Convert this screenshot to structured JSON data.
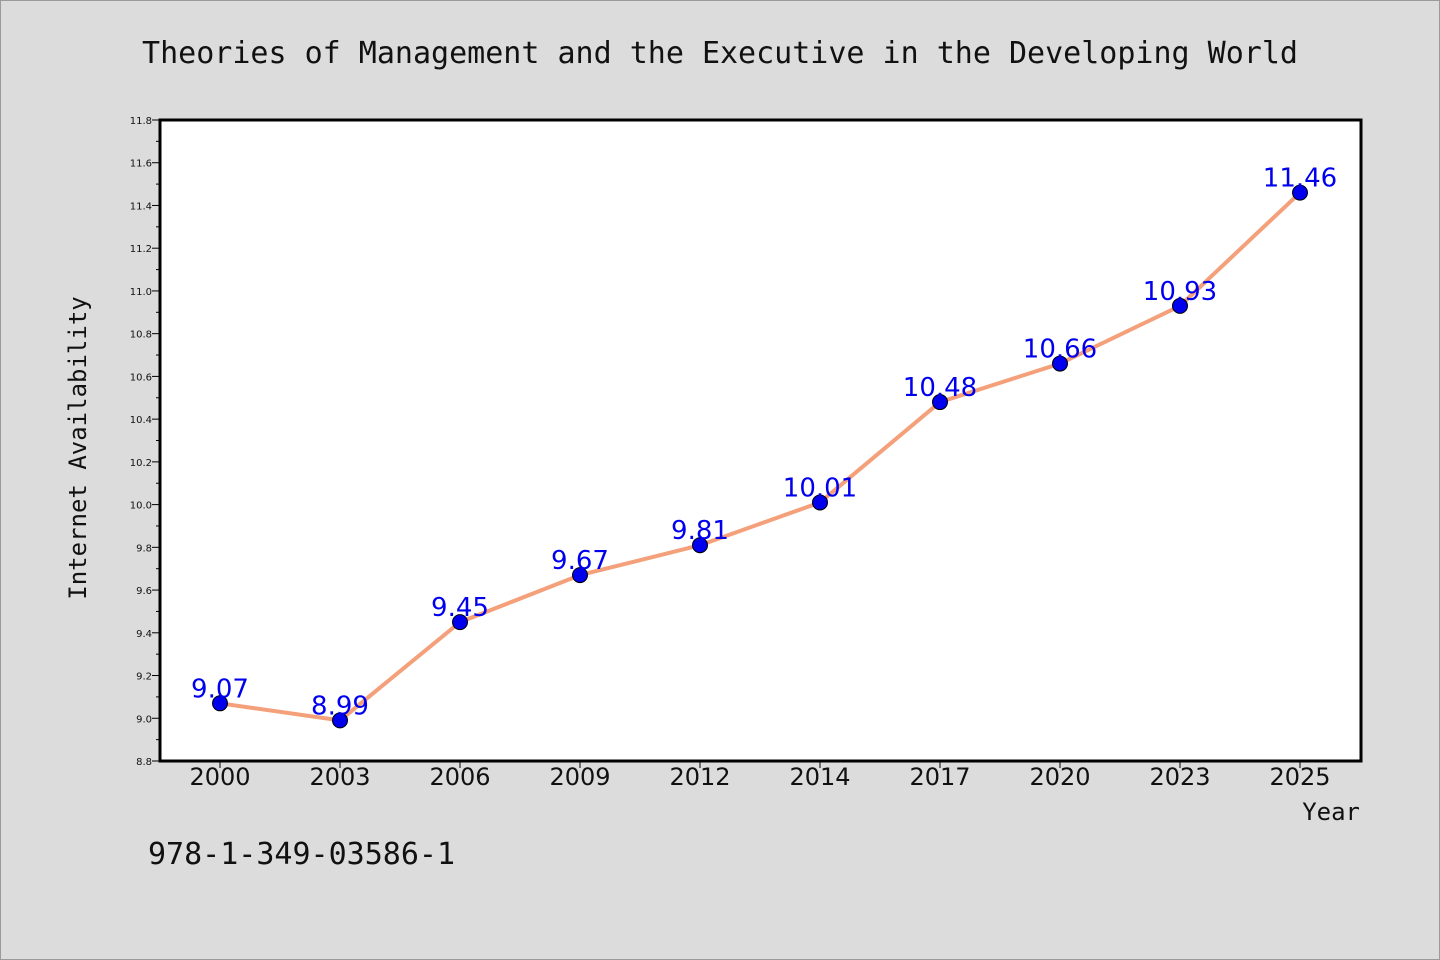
{
  "page": {
    "isbn": "978-1-349-03586-1"
  },
  "chart_data": {
    "type": "line",
    "title": "Theories of Management and the Executive in the Developing World",
    "xlabel": "Year",
    "ylabel": "Internet Availability",
    "categories": [
      "2000",
      "2003",
      "2006",
      "2009",
      "2012",
      "2014",
      "2017",
      "2020",
      "2023",
      "2025"
    ],
    "series": [
      {
        "values": [
          9.07,
          8.99,
          9.45,
          9.67,
          9.81,
          10.01,
          10.48,
          10.66,
          10.93,
          11.46
        ],
        "labels": [
          "9.07",
          "8.99",
          "9.45",
          "9.67",
          "9.81",
          "10.01",
          "10.48",
          "10.66",
          "10.93",
          "11.46"
        ],
        "line_color": "#f4a07a",
        "marker_color": "#0000ee"
      }
    ],
    "ylim": [
      8.8,
      11.8
    ],
    "yticks": [
      "8.8",
      "9.0",
      "9.2",
      "9.4",
      "9.6",
      "9.8",
      "10.0",
      "10.2",
      "10.4",
      "10.6",
      "10.8",
      "11.0",
      "11.2",
      "11.4",
      "11.6",
      "11.8"
    ],
    "label_color": "#0000ee",
    "grid": false,
    "legend": "none"
  }
}
